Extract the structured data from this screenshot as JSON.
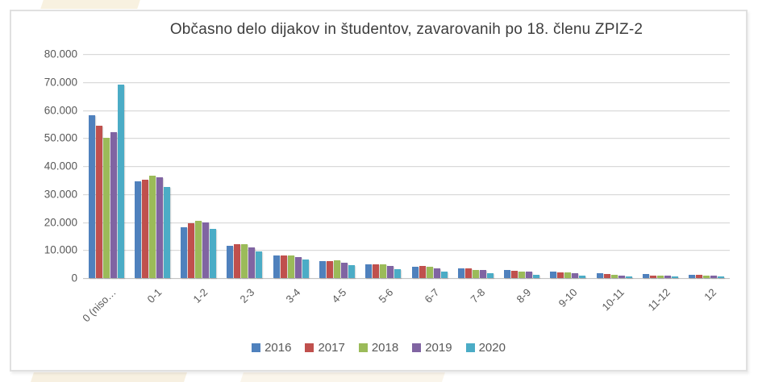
{
  "chart_data": {
    "type": "bar",
    "title": "Občasno delo dijakov in študentov, zavarovanih po 18. členu ZPIZ-2",
    "categories": [
      "0 (niso…",
      "0-1",
      "1-2",
      "2-3",
      "3-4",
      "4-5",
      "5-6",
      "6-7",
      "7-8",
      "8-9",
      "9-10",
      "10-11",
      "11-12",
      "12"
    ],
    "series": [
      {
        "name": "2016",
        "color": "#4F81BD",
        "values": [
          58000,
          34500,
          18000,
          11500,
          8000,
          6000,
          4800,
          4000,
          3400,
          2800,
          2400,
          1800,
          1400,
          1100
        ]
      },
      {
        "name": "2017",
        "color": "#C0504D",
        "values": [
          54500,
          35000,
          19500,
          12000,
          8000,
          6000,
          4800,
          4200,
          3400,
          2600,
          1900,
          1300,
          1000,
          1100
        ]
      },
      {
        "name": "2018",
        "color": "#9BBB59",
        "values": [
          50000,
          36500,
          20500,
          12000,
          8100,
          6200,
          4800,
          3900,
          2900,
          2300,
          1900,
          1100,
          800,
          1000
        ]
      },
      {
        "name": "2019",
        "color": "#8064A2",
        "values": [
          52000,
          36000,
          20000,
          11000,
          7600,
          5600,
          4300,
          3500,
          2900,
          2200,
          1700,
          900,
          800,
          800
        ]
      },
      {
        "name": "2020",
        "color": "#4BACC6",
        "values": [
          69000,
          32500,
          17500,
          9500,
          6500,
          4500,
          3100,
          2300,
          1700,
          1200,
          1000,
          500,
          500,
          500
        ]
      }
    ],
    "y_axis": {
      "min": 0,
      "max": 80000,
      "tick_interval": 10000,
      "ticks": [
        {
          "value": 0,
          "label": "0"
        },
        {
          "value": 10000,
          "label": "10.000"
        },
        {
          "value": 20000,
          "label": "20.000"
        },
        {
          "value": 30000,
          "label": "30.000"
        },
        {
          "value": 40000,
          "label": "40.000"
        },
        {
          "value": 50000,
          "label": "50.000"
        },
        {
          "value": 60000,
          "label": "60.000"
        },
        {
          "value": 70000,
          "label": "70.000"
        },
        {
          "value": 80000,
          "label": "80.000"
        }
      ]
    },
    "grid": true,
    "legend_position": "bottom",
    "colors": {
      "gridline": "#d9d9d9",
      "axis_line": "#c4c4c4",
      "tick_label": "#595959",
      "title": "#3d3d3d",
      "frame_border": "#e0e0e0",
      "background": "#ffffff"
    }
  }
}
